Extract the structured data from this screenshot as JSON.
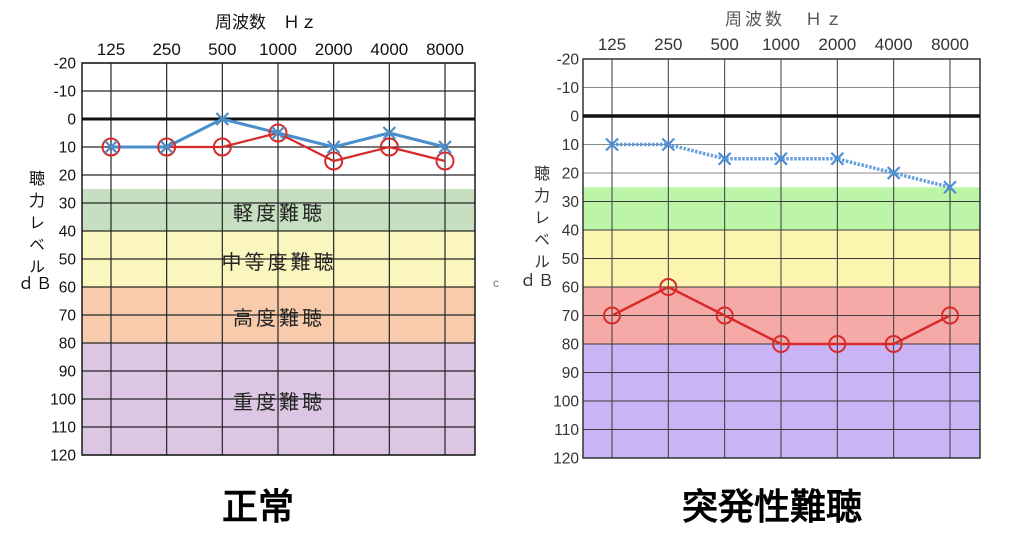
{
  "stray_mark": "c",
  "chart_data": [
    {
      "type": "line",
      "title": "正常",
      "xlabel": "周波数　Ｈｚ",
      "ylabel": "聴力レベル",
      "yunit": "ｄＢ",
      "categories": [
        "125",
        "250",
        "500",
        "1000",
        "2000",
        "4000",
        "8000"
      ],
      "yticks": [
        -20,
        -10,
        0,
        10,
        20,
        30,
        40,
        50,
        60,
        70,
        80,
        90,
        100,
        110,
        120
      ],
      "ylim": [
        -20,
        120
      ],
      "y_inverted": true,
      "reference_line": 0,
      "grid": true,
      "bands": [
        {
          "label": "軽度難聴",
          "from": 25,
          "to": 40,
          "color": "#c6dfc0"
        },
        {
          "label": "中等度難聴",
          "from": 40,
          "to": 60,
          "color": "#fbf5be"
        },
        {
          "label": "高度難聴",
          "from": 60,
          "to": 80,
          "color": "#f7cbab"
        },
        {
          "label": "重度難聴",
          "from": 80,
          "to": 120,
          "color": "#dcc6e3"
        }
      ],
      "series": [
        {
          "marker": "circle",
          "line_style": "solid",
          "color": "#d42b2b",
          "values": [
            10,
            10,
            10,
            5,
            15,
            10,
            15
          ]
        },
        {
          "marker": "cross",
          "line_style": "solid",
          "color": "#4a8ecb",
          "values": [
            10,
            10,
            0,
            5,
            10,
            5,
            10
          ]
        }
      ]
    },
    {
      "type": "line",
      "title": "突発性難聴",
      "xlabel": "周波数　Ｈｚ",
      "ylabel": "聴力レベル",
      "yunit": "ｄＢ",
      "categories": [
        "125",
        "250",
        "500",
        "1000",
        "2000",
        "4000",
        "8000"
      ],
      "yticks": [
        -20,
        -10,
        0,
        10,
        20,
        30,
        40,
        50,
        60,
        70,
        80,
        90,
        100,
        110,
        120
      ],
      "ylim": [
        -20,
        120
      ],
      "y_inverted": true,
      "reference_line": 0,
      "grid": true,
      "bands": [
        {
          "from": 25,
          "to": 40,
          "color": "#bcf5a8"
        },
        {
          "from": 40,
          "to": 60,
          "color": "#fcf5b0"
        },
        {
          "from": 60,
          "to": 80,
          "color": "#f6aaa8"
        },
        {
          "from": 80,
          "to": 120,
          "color": "#c9b4f5"
        }
      ],
      "series": [
        {
          "marker": "circle",
          "line_style": "solid",
          "color": "#d92a2a",
          "values": [
            70,
            60,
            70,
            80,
            80,
            80,
            70
          ]
        },
        {
          "marker": "cross",
          "line_style": "dotted",
          "color": "#4b8fd8",
          "values": [
            10,
            10,
            15,
            15,
            15,
            20,
            25
          ]
        }
      ]
    }
  ]
}
